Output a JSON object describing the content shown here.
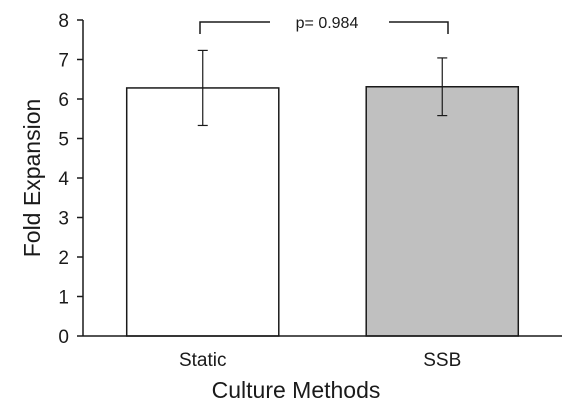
{
  "chart_data": {
    "type": "bar",
    "categories": [
      "Static",
      "SSB"
    ],
    "values": [
      6.28,
      6.31
    ],
    "error": [
      0.95,
      0.73
    ],
    "colors": [
      "#ffffff",
      "#c0c0c0"
    ],
    "xlabel": "Culture Methods",
    "ylabel": "Fold Expansion",
    "ylim": [
      0,
      8
    ],
    "yticks": [
      0,
      1,
      2,
      3,
      4,
      5,
      6,
      7,
      8
    ],
    "grid": false,
    "annotation": "p= 0.984"
  }
}
